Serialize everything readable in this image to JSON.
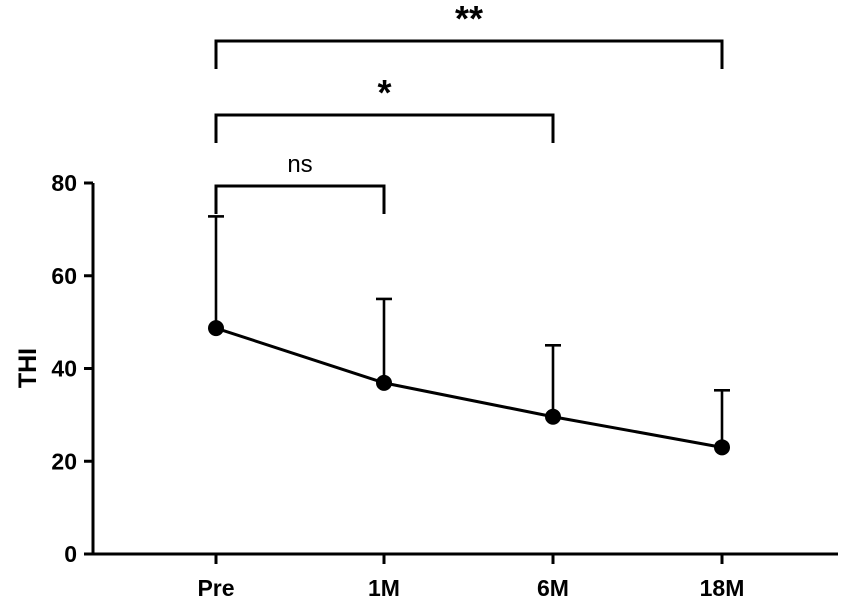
{
  "chart_data": {
    "type": "line",
    "title": "",
    "xlabel": "",
    "ylabel": "THI",
    "categories": [
      "Pre",
      "1M",
      "6M",
      "18M"
    ],
    "series": [
      {
        "values": [
          48.7,
          36.9,
          29.6,
          23.0
        ],
        "error_upper": [
          72.8,
          55.0,
          45.0,
          35.3
        ]
      }
    ],
    "ylim": [
      0,
      80
    ],
    "yticks": [
      0,
      20,
      40,
      60,
      80
    ],
    "grid": false,
    "line_color": "#000000",
    "significance": [
      {
        "from": "Pre",
        "to": "1M",
        "label": "ns"
      },
      {
        "from": "Pre",
        "to": "6M",
        "label": "*"
      },
      {
        "from": "Pre",
        "to": "18M",
        "label": "**"
      }
    ]
  }
}
